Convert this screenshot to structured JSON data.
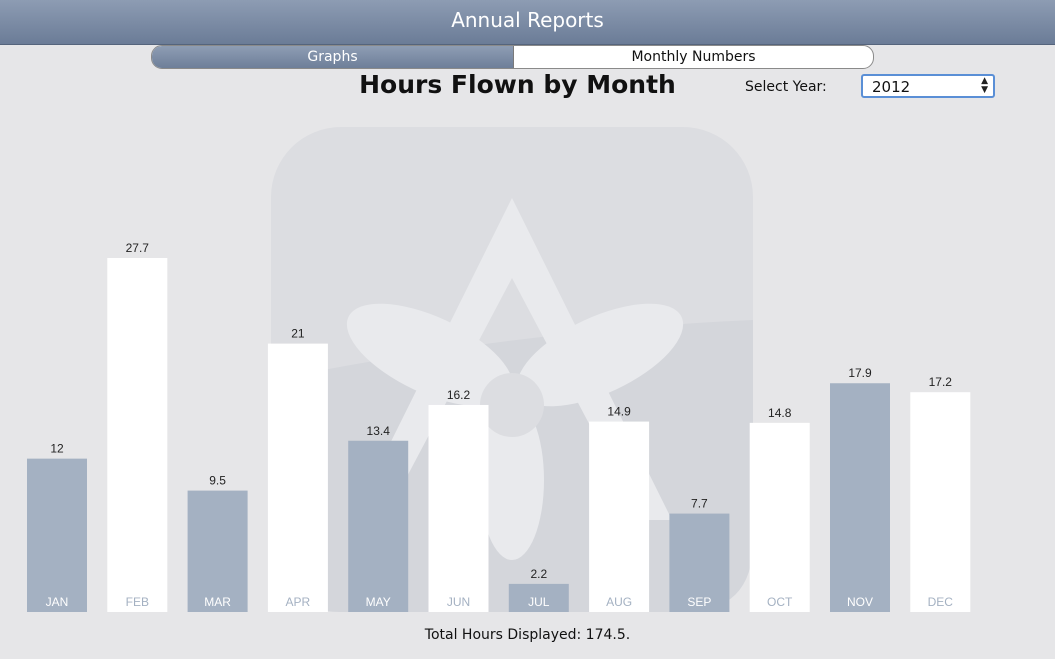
{
  "window": {
    "title": "Annual Reports"
  },
  "tabs": [
    {
      "label": "Graphs",
      "selected": true
    },
    {
      "label": "Monthly Numbers",
      "selected": false
    }
  ],
  "controls": {
    "year_label": "Select Year:",
    "year_value": "2012"
  },
  "chart_data": {
    "type": "bar",
    "title": "Hours Flown by Month",
    "categories": [
      "JAN",
      "FEB",
      "MAR",
      "APR",
      "MAY",
      "JUN",
      "JUL",
      "AUG",
      "SEP",
      "OCT",
      "NOV",
      "DEC"
    ],
    "values": [
      12,
      27.7,
      9.5,
      21,
      13.4,
      16.2,
      2.2,
      14.9,
      7.7,
      14.8,
      17.9,
      17.2
    ],
    "value_labels": [
      "12",
      "27.7",
      "9.5",
      "21",
      "13.4",
      "16.2",
      "2.2",
      "14.9",
      "7.7",
      "14.8",
      "17.9",
      "17.2"
    ],
    "bar_colors": [
      "#a4b1c2",
      "#ffffff",
      "#a4b1c2",
      "#ffffff",
      "#a4b1c2",
      "#ffffff",
      "#a4b1c2",
      "#ffffff",
      "#a4b1c2",
      "#ffffff",
      "#a4b1c2",
      "#ffffff"
    ],
    "category_label_colors": [
      "#ffffff",
      "#a4b1c2",
      "#ffffff",
      "#a4b1c2",
      "#ffffff",
      "#a4b1c2",
      "#ffffff",
      "#a4b1c2",
      "#ffffff",
      "#a4b1c2",
      "#ffffff",
      "#a4b1c2"
    ],
    "ylim": [
      0,
      30
    ],
    "grid": false
  },
  "footer": {
    "total_text": "Total Hours Displayed: 174.5."
  }
}
